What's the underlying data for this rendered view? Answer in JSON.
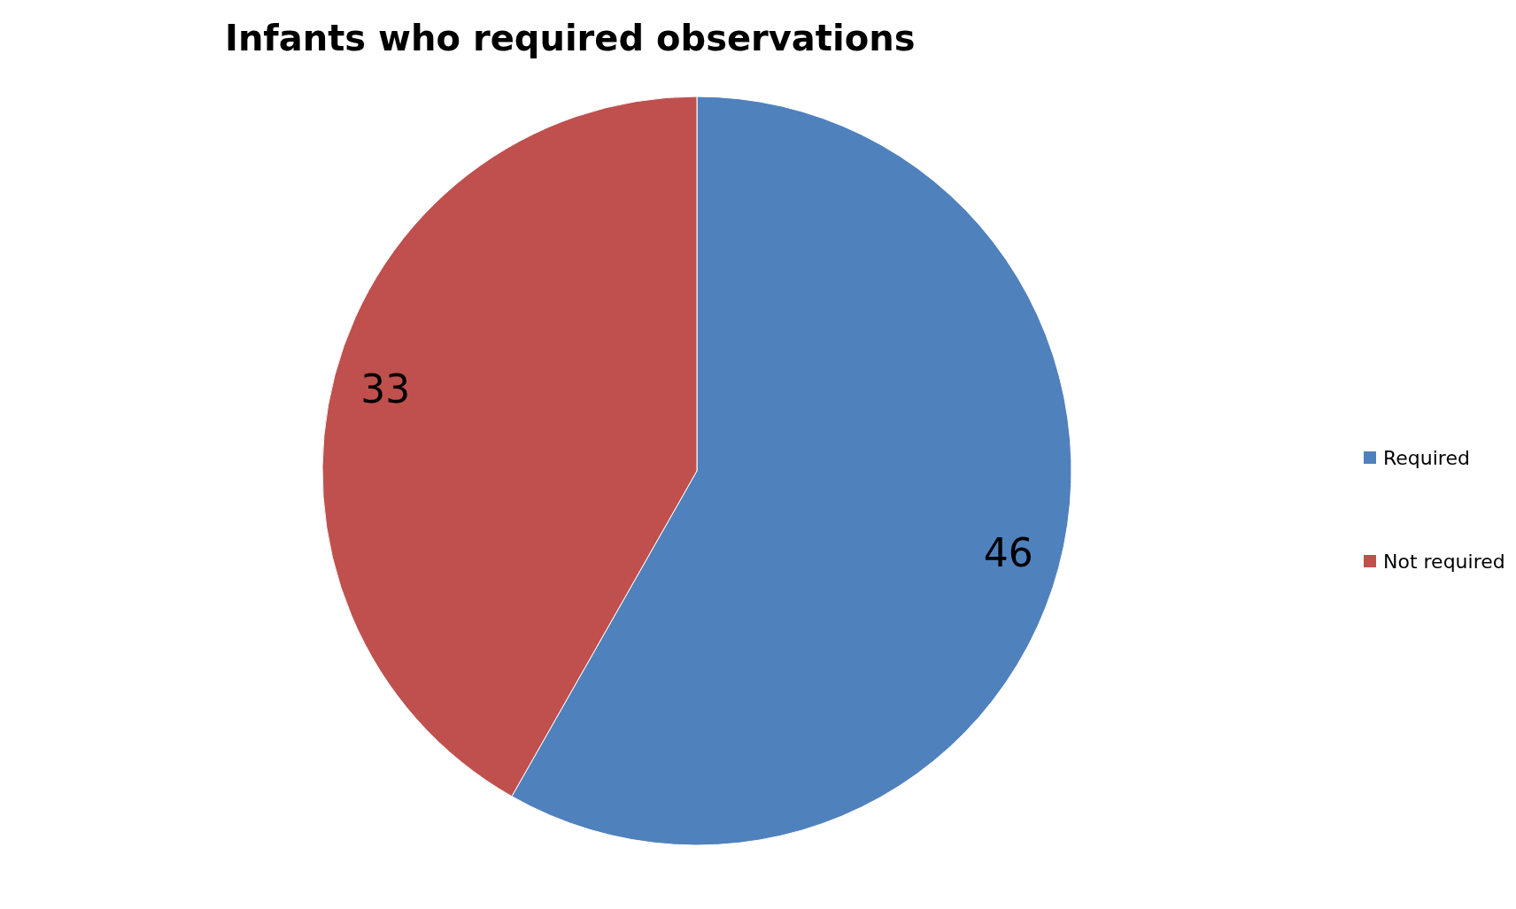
{
  "chart_data": {
    "type": "pie",
    "title": "Infants who required observations",
    "categories": [
      "Required",
      "Not required"
    ],
    "values": [
      46,
      33
    ],
    "colors": [
      "#4f81bd",
      "#c0504d"
    ],
    "data_labels": true,
    "legend": "right"
  }
}
